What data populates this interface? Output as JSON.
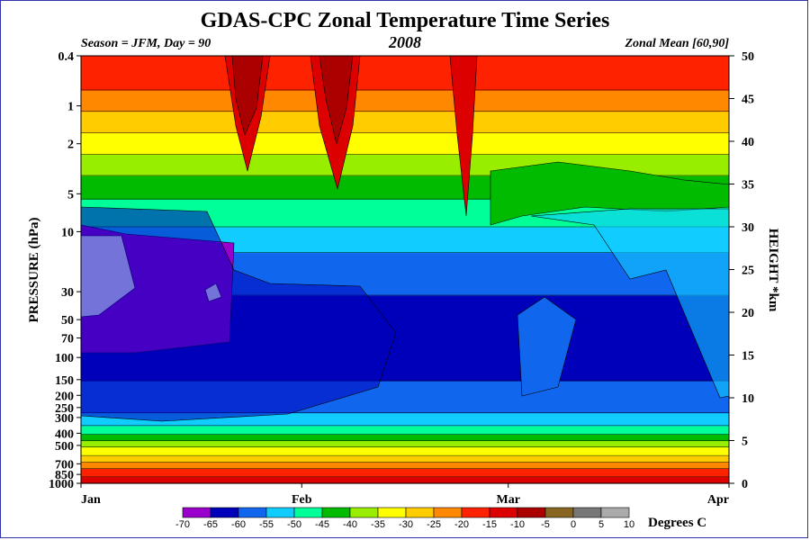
{
  "title": "GDAS-CPC Zonal Temperature Time Series",
  "season_label": "Season = JFM, Day =  90",
  "year": "2008",
  "zonal_label": "Zonal Mean [60,90]",
  "colorbar_unit": "Degrees C",
  "chart_data": {
    "type": "heatmap",
    "title": "GDAS-CPC Zonal Temperature Time Series",
    "ylabel": "PRESSURE (hPa)",
    "y2label": "HEIGHT *km",
    "x_ticks": [
      {
        "label": "Jan",
        "day": 0
      },
      {
        "label": "Feb",
        "day": 31
      },
      {
        "label": "Mar",
        "day": 60
      },
      {
        "label": "Apr",
        "day": 91
      }
    ],
    "xlim_days": [
      0,
      91
    ],
    "pressure_ticks": [
      "0.4",
      "1",
      "2",
      "5",
      "10",
      "30",
      "50",
      "70",
      "100",
      "150",
      "200",
      "250",
      "300",
      "400",
      "500",
      "700",
      "850",
      "1000"
    ],
    "pressure_values": [
      0.4,
      1,
      2,
      5,
      10,
      30,
      50,
      70,
      100,
      150,
      200,
      250,
      300,
      400,
      500,
      700,
      850,
      1000
    ],
    "ylim_hpa": [
      1000,
      0.4
    ],
    "height_ticks": [
      "0",
      "5",
      "10",
      "15",
      "20",
      "25",
      "30",
      "35",
      "40",
      "45",
      "50"
    ],
    "height_values": [
      0,
      5,
      10,
      15,
      20,
      25,
      30,
      35,
      40,
      45,
      50
    ],
    "colorbar_levels": [
      "-70",
      "-65",
      "-60",
      "-55",
      "-50",
      "-45",
      "-40",
      "-35",
      "-30",
      "-25",
      "-20",
      "-15",
      "-10",
      "-5",
      "0",
      "5",
      "10"
    ],
    "colorbar_colors": [
      "#9900cc",
      "#0000bb",
      "#1166ee",
      "#11ccff",
      "#00ff99",
      "#00bb00",
      "#99ee00",
      "#ffff00",
      "#ffcc00",
      "#ff8800",
      "#ff2200",
      "#dd0000",
      "#aa0000",
      "#886622",
      "#777777",
      "#aaaaaa"
    ],
    "profile_temperature_by_height_km": [
      {
        "z": 0,
        "t": -12
      },
      {
        "z": 1,
        "t": -16
      },
      {
        "z": 2,
        "t": -22
      },
      {
        "z": 3,
        "t": -28
      },
      {
        "z": 4,
        "t": -34
      },
      {
        "z": 5,
        "t": -40
      },
      {
        "z": 6,
        "t": -46
      },
      {
        "z": 7,
        "t": -52
      },
      {
        "z": 9,
        "t": -57
      },
      {
        "z": 12,
        "t": -60
      },
      {
        "z": 17,
        "t": -62
      },
      {
        "z": 22,
        "t": -60
      },
      {
        "z": 27,
        "t": -55
      },
      {
        "z": 32,
        "t": -47
      },
      {
        "z": 36,
        "t": -40
      },
      {
        "z": 40,
        "t": -32
      },
      {
        "z": 44,
        "t": -24
      },
      {
        "z": 47,
        "t": -18
      },
      {
        "z": 50,
        "t": -16
      }
    ]
  }
}
